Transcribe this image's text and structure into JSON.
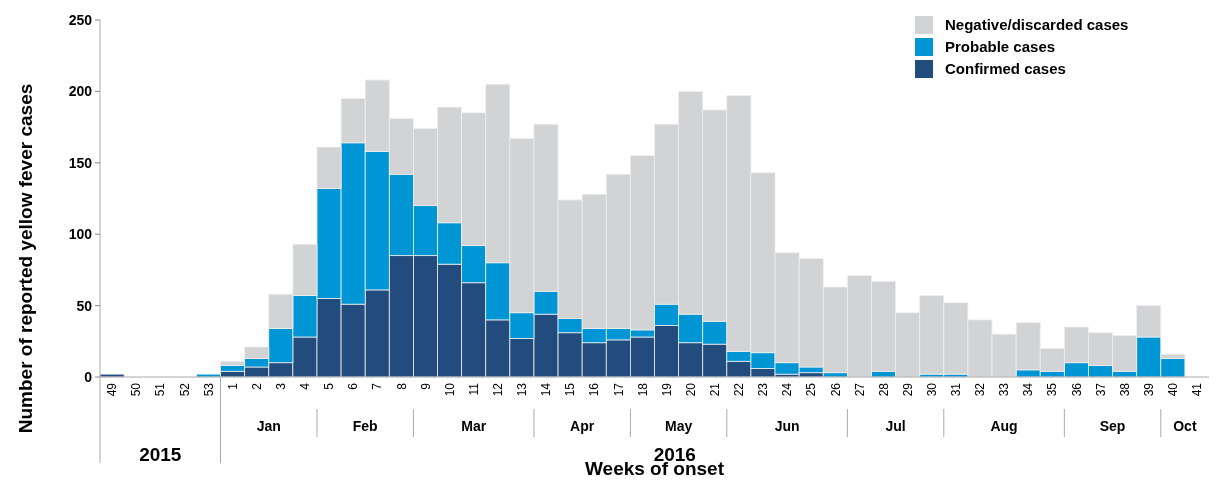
{
  "chart_data": {
    "type": "bar",
    "stacked": true,
    "xlabel": "Weeks of onset",
    "ylabel": "Number of reported yellow fever cases",
    "categories": [
      "49",
      "50",
      "51",
      "52",
      "53",
      "1",
      "2",
      "3",
      "4",
      "5",
      "6",
      "7",
      "8",
      "9",
      "10",
      "11",
      "12",
      "13",
      "14",
      "15",
      "16",
      "17",
      "18",
      "19",
      "20",
      "21",
      "22",
      "23",
      "24",
      "25",
      "26",
      "27",
      "28",
      "29",
      "30",
      "31",
      "32",
      "33",
      "34",
      "35",
      "36",
      "37",
      "38",
      "39",
      "40",
      "41"
    ],
    "series": [
      {
        "name": "Confirmed cases",
        "color": "#234c7e",
        "values": [
          2,
          0,
          0,
          0,
          0,
          4,
          7,
          10,
          28,
          55,
          51,
          61,
          85,
          85,
          79,
          66,
          40,
          27,
          44,
          31,
          24,
          26,
          28,
          36,
          24,
          23,
          11,
          6,
          2,
          3,
          0,
          0,
          0,
          0,
          0,
          0,
          0,
          0,
          0,
          0,
          0,
          0,
          0,
          0,
          0,
          0
        ]
      },
      {
        "name": "Probable cases",
        "color": "#0096d6",
        "values": [
          0,
          0,
          0,
          0,
          2,
          4,
          6,
          24,
          29,
          77,
          113,
          97,
          57,
          35,
          29,
          26,
          40,
          18,
          16,
          10,
          10,
          8,
          5,
          15,
          20,
          16,
          7,
          11,
          8,
          4,
          3,
          0,
          4,
          0,
          2,
          2,
          0,
          0,
          5,
          4,
          10,
          8,
          4,
          28,
          13,
          0
        ]
      },
      {
        "name": "Negative/discarded cases",
        "color": "#d1d3d4",
        "values": [
          0,
          0,
          0,
          0,
          0,
          3,
          8,
          24,
          36,
          29,
          31,
          50,
          39,
          54,
          81,
          93,
          125,
          122,
          117,
          83,
          94,
          108,
          122,
          126,
          156,
          148,
          179,
          126,
          77,
          76,
          60,
          71,
          63,
          45,
          55,
          50,
          40,
          30,
          33,
          16,
          25,
          23,
          25,
          22,
          3,
          0
        ]
      }
    ],
    "ylim": [
      0,
      250
    ],
    "yticks": [
      0,
      50,
      100,
      150,
      200,
      250
    ],
    "grid": false,
    "legend": "top right",
    "annotations": [
      "Jan",
      "Feb",
      "Mar",
      "Apr",
      "May",
      "Jun",
      "Jul",
      "Aug",
      "Sep",
      "Oct",
      "2015",
      "2016"
    ]
  }
}
